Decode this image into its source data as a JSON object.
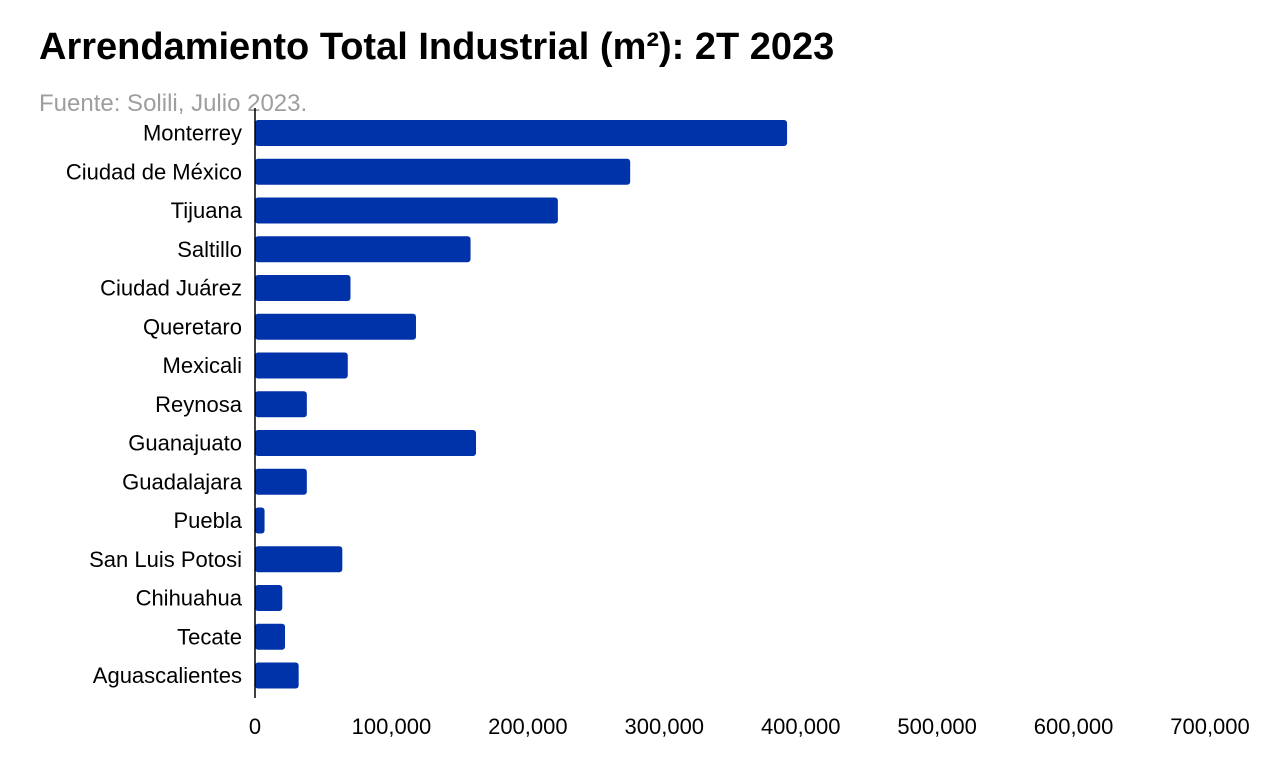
{
  "title": "Arrendamiento Total Industrial (m²): 2T 2023",
  "subtitle": "Fuente: Solili, Julio 2023.",
  "colors": {
    "bar": "#0033aa",
    "axis": "#000000",
    "text": "#000000",
    "subtitle": "#9e9e9e"
  },
  "chart_data": {
    "type": "bar",
    "orientation": "horizontal",
    "title": "Arrendamiento Total Industrial (m²): 2T 2023",
    "subtitle": "Fuente: Solili, Julio 2023.",
    "categories": [
      "Monterrey",
      "Ciudad de México",
      "Tijuana",
      "Saltillo",
      "Ciudad Juárez",
      "Queretaro",
      "Mexicali",
      "Reynosa",
      "Guanajuato",
      "Guadalajara",
      "Puebla",
      "San Luis Potosi",
      "Chihuahua",
      "Tecate",
      "Aguascalientes"
    ],
    "values": [
      390000,
      275000,
      222000,
      158000,
      70000,
      118000,
      68000,
      38000,
      162000,
      38000,
      7000,
      64000,
      20000,
      22000,
      32000
    ],
    "xlim": [
      0,
      700000
    ],
    "xticks": [
      0,
      100000,
      200000,
      300000,
      400000,
      500000,
      600000,
      700000
    ],
    "xtick_labels": [
      "0",
      "100,000",
      "200,000",
      "300,000",
      "400,000",
      "500,000",
      "600,000",
      "700,000"
    ],
    "xlabel": "",
    "ylabel": "",
    "grid": false,
    "legend": "none"
  }
}
